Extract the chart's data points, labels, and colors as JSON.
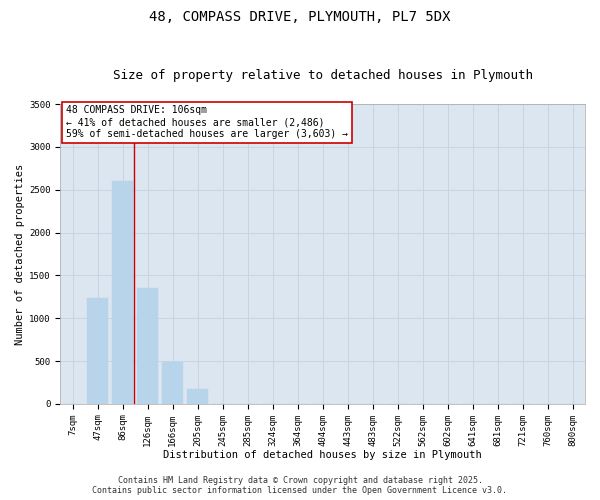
{
  "title_line1": "48, COMPASS DRIVE, PLYMOUTH, PL7 5DX",
  "title_line2": "Size of property relative to detached houses in Plymouth",
  "xlabel": "Distribution of detached houses by size in Plymouth",
  "ylabel": "Number of detached properties",
  "categories": [
    "7sqm",
    "47sqm",
    "86sqm",
    "126sqm",
    "166sqm",
    "205sqm",
    "245sqm",
    "285sqm",
    "324sqm",
    "364sqm",
    "404sqm",
    "443sqm",
    "483sqm",
    "522sqm",
    "562sqm",
    "602sqm",
    "641sqm",
    "681sqm",
    "721sqm",
    "760sqm",
    "800sqm"
  ],
  "values": [
    0,
    1240,
    2600,
    1350,
    490,
    170,
    0,
    0,
    0,
    0,
    0,
    0,
    0,
    0,
    0,
    0,
    0,
    0,
    0,
    0,
    0
  ],
  "bar_color": "#b8d4ea",
  "bar_edge_color": "#b8d4ea",
  "grid_color": "#c8d4e4",
  "bg_color": "#dce6f0",
  "vline_color": "#cc0000",
  "vline_x_index": 2,
  "annotation_text": "48 COMPASS DRIVE: 106sqm\n← 41% of detached houses are smaller (2,486)\n59% of semi-detached houses are larger (3,603) →",
  "annotation_box_color": "#cc0000",
  "ylim": [
    0,
    3500
  ],
  "yticks": [
    0,
    500,
    1000,
    1500,
    2000,
    2500,
    3000,
    3500
  ],
  "footer_line1": "Contains HM Land Registry data © Crown copyright and database right 2025.",
  "footer_line2": "Contains public sector information licensed under the Open Government Licence v3.0.",
  "title_fontsize": 10,
  "subtitle_fontsize": 9,
  "axis_label_fontsize": 7.5,
  "tick_fontsize": 6.5,
  "annotation_fontsize": 7,
  "footer_fontsize": 6
}
